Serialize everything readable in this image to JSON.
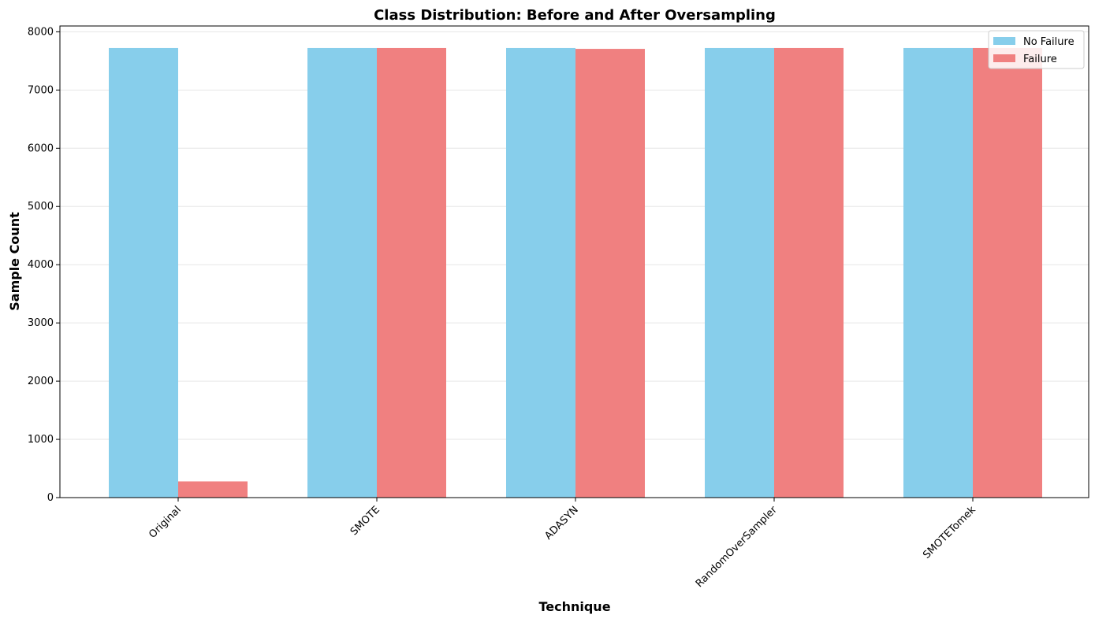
{
  "chart_data": {
    "type": "bar",
    "title": "Class Distribution: Before and After Oversampling",
    "xlabel": "Technique",
    "ylabel": "Sample Count",
    "categories": [
      "Original",
      "SMOTE",
      "ADASYN",
      "RandomOverSampler",
      "SMOTETomek"
    ],
    "series": [
      {
        "name": "No Failure",
        "color": "#87CEEB",
        "values": [
          7722,
          7722,
          7722,
          7722,
          7722
        ]
      },
      {
        "name": "Failure",
        "color": "#F08080",
        "values": [
          278,
          7722,
          7707,
          7722,
          7722
        ]
      }
    ],
    "ylim": [
      0,
      8100
    ],
    "yticks": [
      0,
      1000,
      2000,
      3000,
      4000,
      5000,
      6000,
      7000,
      8000
    ],
    "grid": "y",
    "legend_position": "top-right",
    "tick_rotation": 45
  }
}
